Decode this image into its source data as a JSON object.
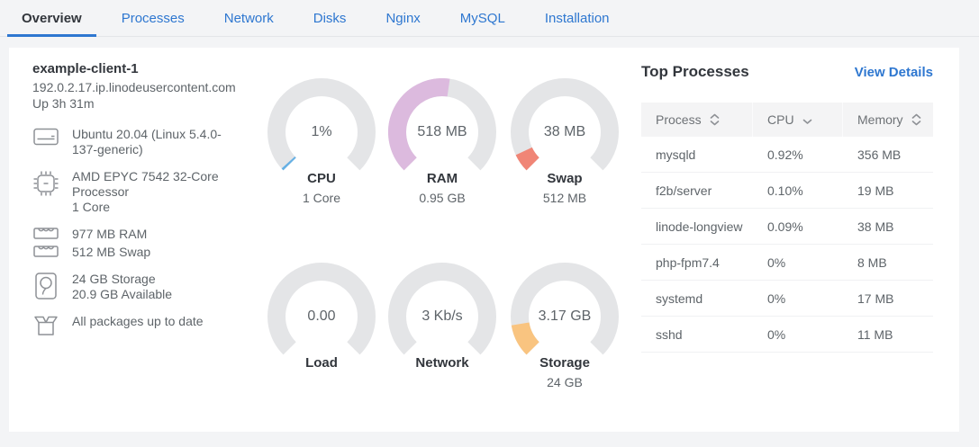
{
  "colors": {
    "accent_blue": "#2e77d0",
    "gauge_track": "#e4e5e7",
    "page_background": "#f3f4f6",
    "card_background": "#ffffff"
  },
  "tabs": {
    "items": [
      {
        "label": "Overview",
        "active": true
      },
      {
        "label": "Processes",
        "active": false
      },
      {
        "label": "Network",
        "active": false
      },
      {
        "label": "Disks",
        "active": false
      },
      {
        "label": "Nginx",
        "active": false
      },
      {
        "label": "MySQL",
        "active": false
      },
      {
        "label": "Installation",
        "active": false
      }
    ]
  },
  "host": {
    "name": "example-client-1",
    "hostname": "192.0.2.17.ip.linodeusercontent.com",
    "uptime": "Up 3h 31m"
  },
  "system_info": {
    "os": "Ubuntu 20.04 (Linux 5.4.0-137-generic)",
    "cpu": "AMD EPYC 7542 32-Core Processor",
    "cpu_cores": "1 Core",
    "ram": "977 MB RAM",
    "swap": "512 MB Swap",
    "storage": "24 GB Storage",
    "storage_available": "20.9 GB Available",
    "packages": "All packages up to date"
  },
  "gauges": [
    {
      "id": "cpu",
      "value": "1%",
      "label": "CPU",
      "sublabel": "1 Core",
      "percent": 1,
      "color": "#66b0e4"
    },
    {
      "id": "ram",
      "value": "518 MB",
      "label": "RAM",
      "sublabel": "0.95 GB",
      "percent": 53,
      "color": "#dcbade"
    },
    {
      "id": "swap",
      "value": "38 MB",
      "label": "Swap",
      "sublabel": "512 MB",
      "percent": 7.4,
      "color": "#f08576"
    },
    {
      "id": "load",
      "value": "0.00",
      "label": "Load",
      "sublabel": "",
      "percent": 0,
      "color": "#e4e5e7"
    },
    {
      "id": "network",
      "value": "3 Kb/s",
      "label": "Network",
      "sublabel": "",
      "percent": 0,
      "color": "#e4e5e7"
    },
    {
      "id": "storage",
      "value": "3.17 GB",
      "label": "Storage",
      "sublabel": "24 GB",
      "percent": 13.2,
      "color": "#f9c480"
    }
  ],
  "top_processes": {
    "title": "Top Processes",
    "view_details_label": "View Details",
    "columns": [
      {
        "label": "Process",
        "sort": "both"
      },
      {
        "label": "CPU",
        "sort": "desc"
      },
      {
        "label": "Memory",
        "sort": "both"
      }
    ],
    "rows": [
      {
        "process": "mysqld",
        "cpu": "0.92%",
        "memory": "356 MB"
      },
      {
        "process": "f2b/server",
        "cpu": "0.10%",
        "memory": "19 MB"
      },
      {
        "process": "linode-longview",
        "cpu": "0.09%",
        "memory": "38 MB"
      },
      {
        "process": "php-fpm7.4",
        "cpu": "0%",
        "memory": "8 MB"
      },
      {
        "process": "systemd",
        "cpu": "0%",
        "memory": "17 MB"
      },
      {
        "process": "sshd",
        "cpu": "0%",
        "memory": "11 MB"
      }
    ]
  }
}
